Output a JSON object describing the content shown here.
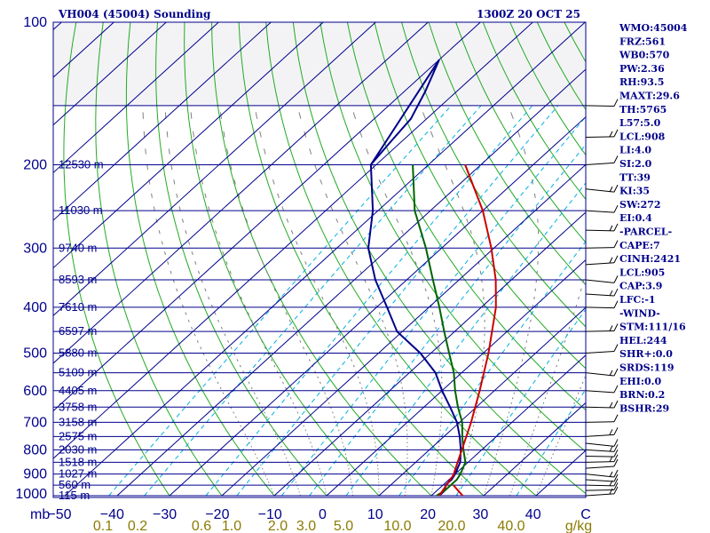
{
  "header": {
    "title": "VH004 (45004) Sounding",
    "time": "1300Z 20 OCT 25"
  },
  "chart_data": {
    "type": "skew-t",
    "pressure_levels": [
      100,
      200,
      300,
      400,
      500,
      600,
      700,
      800,
      900,
      1000
    ],
    "pressure_unit_label": "mb",
    "temperature_ticks": [
      -50,
      -40,
      -30,
      -20,
      -10,
      0,
      10,
      20,
      30,
      40,
      "C"
    ],
    "mixing_ratio_ticks": [
      "0.1",
      "0.2",
      "0.6",
      "1.0",
      "2.0",
      "3.0",
      "5.0",
      "10.0",
      "20.0",
      "40.0",
      "g/kg"
    ],
    "height_labels": [
      {
        "p": 200,
        "text": "12530 m"
      },
      {
        "p": 250,
        "text": "11030 m"
      },
      {
        "p": 300,
        "text": "9740 m"
      },
      {
        "p": 350,
        "text": "8593 m"
      },
      {
        "p": 400,
        "text": "7610 m"
      },
      {
        "p": 450,
        "text": "6597 m"
      },
      {
        "p": 500,
        "text": "5880 m"
      },
      {
        "p": 550,
        "text": "5109 m"
      },
      {
        "p": 600,
        "text": "4405 m"
      },
      {
        "p": 650,
        "text": "3758 m"
      },
      {
        "p": 700,
        "text": "3158 m"
      },
      {
        "p": 750,
        "text": "2575 m"
      },
      {
        "p": 800,
        "text": "2030 m"
      },
      {
        "p": 850,
        "text": "1518 m"
      },
      {
        "p": 900,
        "text": "1027 m"
      },
      {
        "p": 950,
        "text": "560 m"
      },
      {
        "p": 1000,
        "text": "115 m"
      }
    ],
    "temperature_profile": [
      [
        1000,
        26
      ],
      [
        975,
        24
      ],
      [
        950,
        22
      ],
      [
        925,
        21.5
      ],
      [
        900,
        22
      ],
      [
        850,
        19.5
      ],
      [
        800,
        16.5
      ],
      [
        750,
        13.5
      ],
      [
        700,
        10.5
      ],
      [
        650,
        7
      ],
      [
        600,
        3
      ],
      [
        550,
        -1
      ],
      [
        500,
        -6
      ],
      [
        450,
        -11
      ],
      [
        400,
        -16
      ],
      [
        350,
        -23
      ],
      [
        300,
        -32
      ],
      [
        250,
        -42
      ],
      [
        200,
        -50
      ]
    ],
    "dewpoint_profile": [
      [
        1000,
        21.5
      ],
      [
        975,
        21.5
      ],
      [
        950,
        20.5
      ],
      [
        925,
        20.5
      ],
      [
        900,
        20
      ],
      [
        850,
        18.5
      ],
      [
        800,
        16
      ],
      [
        750,
        13
      ],
      [
        700,
        9.5
      ],
      [
        650,
        5
      ],
      [
        600,
        0
      ],
      [
        550,
        -5
      ],
      [
        500,
        -12
      ],
      [
        450,
        -21
      ],
      [
        400,
        -28
      ],
      [
        350,
        -36
      ],
      [
        300,
        -44
      ],
      [
        250,
        -51
      ],
      [
        200,
        -61
      ]
    ],
    "virtual_temperature_profile": [
      [
        1000,
        21
      ],
      [
        975,
        21.5
      ],
      [
        950,
        21.5
      ],
      [
        925,
        21.5
      ],
      [
        900,
        21
      ],
      [
        850,
        19.5
      ],
      [
        800,
        16.5
      ],
      [
        750,
        13.5
      ],
      [
        700,
        10.5
      ],
      [
        650,
        6.5
      ],
      [
        600,
        2.5
      ],
      [
        550,
        -1.5
      ],
      [
        500,
        -6.5
      ],
      [
        450,
        -12
      ],
      [
        400,
        -18
      ],
      [
        350,
        -25
      ],
      [
        300,
        -33
      ],
      [
        250,
        -43
      ],
      [
        200,
        -53
      ]
    ],
    "parcel_profile": [
      [
        1000,
        21.5
      ],
      [
        905,
        19.9
      ],
      [
        850,
        18
      ],
      [
        800,
        16.2
      ],
      [
        700,
        12.2
      ],
      [
        600,
        7.2
      ],
      [
        500,
        1
      ],
      [
        400,
        -7.2
      ],
      [
        350,
        -13
      ],
      [
        300,
        -20.5
      ],
      [
        250,
        -30
      ],
      [
        200,
        -43
      ]
    ],
    "dewpoint_top": [
      [
        120,
        -70
      ],
      [
        140,
        -66
      ],
      [
        160,
        -63
      ],
      [
        180,
        -62
      ],
      [
        200,
        -61
      ]
    ],
    "wind_barb_levels": [
      1000,
      975,
      950,
      925,
      900,
      875,
      850,
      825,
      800,
      775,
      750,
      700,
      650,
      600,
      550,
      500,
      450,
      400,
      375,
      350,
      325,
      300,
      275,
      250,
      225,
      200,
      175,
      150
    ]
  },
  "indices": [
    "WMO:45004",
    "FRZ:561",
    "WB0:570",
    "PW:2.36",
    "RH:93.5",
    "MAXT:29.6",
    "TH:5765",
    "L57:5.0",
    "LCL:908",
    "LI:4.0",
    "SI:2.0",
    "TT:39",
    "KI:35",
    "SW:272",
    "EI:0.4",
    "-PARCEL-",
    "CAPE:7",
    "CINH:2421",
    "LCL:905",
    "CAP:3.9",
    "LFC:-1",
    "-WIND-",
    "STM:111/16",
    "HEL:244",
    "SHR+:0.0",
    "SRDS:119",
    "EHI:0.0",
    "BRN:0.2",
    "BSHR:29"
  ],
  "colors": {
    "frame": "#00008b",
    "isotherm": "#00008b",
    "dry_adiabat": "#22aa22",
    "moist_adiabat": "#808080",
    "mixing_ratio": "#00b0e0",
    "temperature": "#00008b",
    "dewpoint": "#006400",
    "parcel": "#cc0000",
    "barb": "#000000"
  }
}
